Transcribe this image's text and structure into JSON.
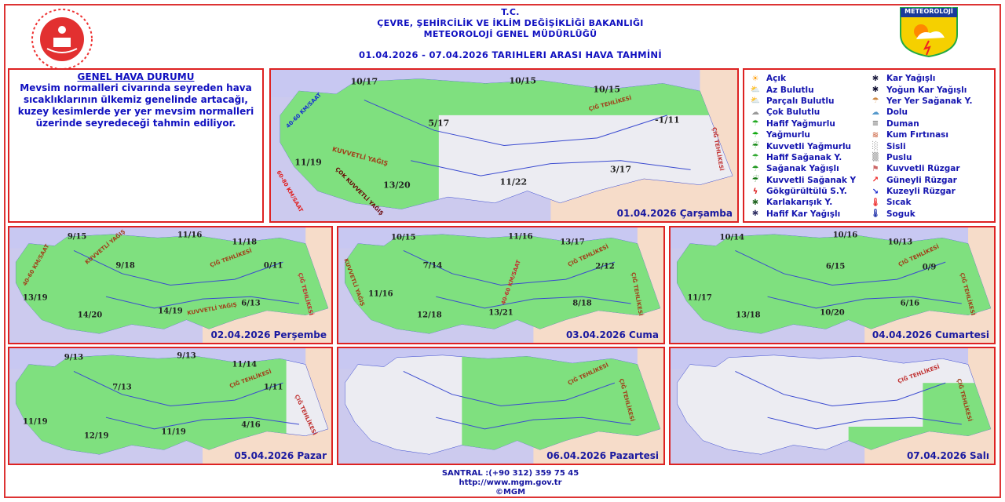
{
  "header": {
    "tc": "T.C.",
    "ministry": "ÇEVRE, ŞEHİRCİLİK VE İKLİM DEĞİŞİKLİĞİ BAKANLIĞI",
    "directorate": "METEOROLOJİ  GENEL  MÜDÜRLÜĞÜ",
    "forecast_title": "01.04.2026  -  07.04.2026   TARIHLERI  ARASI  HAVA  TAHMİNİ",
    "right_logo_text": "METEOROLOJİ"
  },
  "general": {
    "title": "GENEL HAVA DURUMU",
    "text": "Mevsim normalleri civarında seyreden hava sıcaklıklarının ülkemiz genelinde artacağı, kuzey kesimlerde yer yer mevsim normalleri üzerinde seyredeceği tahmin ediliyor."
  },
  "colors": {
    "border": "#dd2222",
    "text_blue": "#1515b0",
    "green": "#7fe07f",
    "sea": "#c8c8f2",
    "land": "#f6dcc9",
    "gray_land": "#ececf2",
    "wind_north": "#1530d0",
    "wind_south": "#e02020"
  },
  "days": [
    {
      "date": "01.04.2026 Çarşamba",
      "temps": [
        "10/17",
        "10/15",
        "10/15",
        "5/17",
        "-1/11",
        "11/19",
        "13/20",
        "11/22",
        "3/17"
      ],
      "annotations": [
        "40-60 KM/SAAT",
        "60-80 KM/SAAT",
        "KUVVETLİ YAĞIŞ",
        "ÇOK KUVVETLİ YAĞIŞ",
        "ÇIĞ TEHLİKESİ",
        "ÇIĞ TEHLİKESİ"
      ]
    },
    {
      "date": "02.04.2026 Perşembe",
      "temps": [
        "9/15",
        "11/16",
        "11/18",
        "9/18",
        "0/11",
        "13/19",
        "14/20",
        "14/19",
        "6/13"
      ],
      "annotations": [
        "KUVVETLİ YAĞIŞ",
        "40-60 KM/SAAT",
        "KUVVETLİ YAĞIŞ",
        "ÇIĞ TEHLİKESİ",
        "ÇIĞ TEHLİKESİ"
      ]
    },
    {
      "date": "03.04.2026 Cuma",
      "temps": [
        "10/15",
        "11/16",
        "13/17",
        "7/14",
        "2/12",
        "11/16",
        "12/18",
        "13/21",
        "8/18"
      ],
      "annotations": [
        "KUVVETLİ YAĞIŞ",
        "40-60 KM/SAAT",
        "ÇIĞ TEHLİKESİ",
        "ÇIĞ TEHLİKESİ"
      ]
    },
    {
      "date": "04.04.2026 Cumartesi",
      "temps": [
        "10/14",
        "10/16",
        "10/13",
        "6/15",
        "0/9",
        "11/17",
        "13/18",
        "10/20",
        "6/16"
      ],
      "annotations": [
        "ÇIĞ TEHLİKESİ",
        "ÇIĞ TEHLİKESİ"
      ]
    },
    {
      "date": "05.04.2026 Pazar",
      "temps": [
        "9/13",
        "9/13",
        "11/14",
        "7/13",
        "1/11",
        "11/19",
        "12/19",
        "11/19",
        "4/16"
      ],
      "annotations": [
        "ÇIĞ TEHLİKESİ",
        "ÇIĞ TEHLİKESİ"
      ]
    },
    {
      "date": "06.04.2026 Pazartesi",
      "temps": [],
      "annotations": [
        "ÇIĞ TEHLİKESİ",
        "ÇIĞ TEHLİKESİ"
      ]
    },
    {
      "date": "07.04.2026 Salı",
      "temps": [],
      "annotations": [
        "ÇIĞ TEHLİKESİ",
        "ÇIĞ TEHLİKESİ"
      ]
    }
  ],
  "legend": [
    {
      "label": "Açık",
      "icon": "sun-icon"
    },
    {
      "label": "Kar Yağışlı",
      "icon": "snow-icon"
    },
    {
      "label": "Az Bulutlu",
      "icon": "sun-cloud-icon"
    },
    {
      "label": "Yoğun Kar Yağışlı",
      "icon": "heavy-snow-icon"
    },
    {
      "label": "Parçalı Bulutlu",
      "icon": "partly-cloudy-icon"
    },
    {
      "label": "Yer Yer Sağanak Y.",
      "icon": "scattered-showers-icon"
    },
    {
      "label": "Çok Bulutlu",
      "icon": "cloudy-icon"
    },
    {
      "label": "Dolu",
      "icon": "hail-icon"
    },
    {
      "label": "Hafif Yağmurlu",
      "icon": "light-rain-icon"
    },
    {
      "label": "Duman",
      "icon": "smoke-icon"
    },
    {
      "label": "Yağmurlu",
      "icon": "rain-icon"
    },
    {
      "label": "Kum Fırtınası",
      "icon": "sandstorm-icon"
    },
    {
      "label": "Kuvvetli Yağmurlu",
      "icon": "heavy-rain-icon"
    },
    {
      "label": "Sisli",
      "icon": "fog-icon"
    },
    {
      "label": "Hafif Sağanak Y.",
      "icon": "light-shower-icon"
    },
    {
      "label": "Puslu",
      "icon": "haze-icon"
    },
    {
      "label": "Sağanak Yağışlı",
      "icon": "shower-icon"
    },
    {
      "label": "Kuvvetli Rüzgar",
      "icon": "strong-wind-icon"
    },
    {
      "label": "Kuvvetli Sağanak Y",
      "icon": "heavy-shower-icon"
    },
    {
      "label": "Güneyli Rüzgar",
      "icon": "south-wind-arrow-icon"
    },
    {
      "label": "Gökgürültülü S.Y.",
      "icon": "thunderstorm-icon"
    },
    {
      "label": "Kuzeyli Rüzgar",
      "icon": "north-wind-arrow-icon"
    },
    {
      "label": "Karlakarışık Y.",
      "icon": "sleet-icon"
    },
    {
      "label": "Sıcak",
      "icon": "hot-thermometer-icon"
    },
    {
      "label": "Hafif Kar Yağışlı",
      "icon": "light-snow-icon"
    },
    {
      "label": "Soguk",
      "icon": "cold-thermometer-icon"
    }
  ],
  "footer": {
    "phone": "SANTRAL :(+90 312) 359 75 45",
    "url": "http://www.mgm.gov.tr",
    "copyright": "©MGM"
  }
}
